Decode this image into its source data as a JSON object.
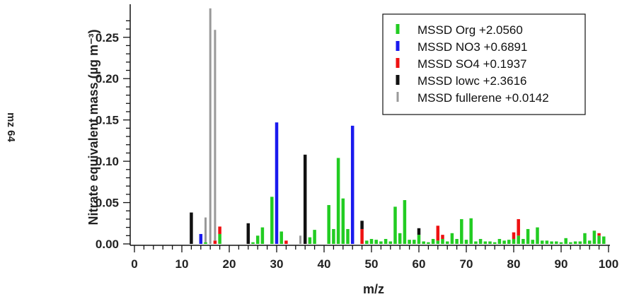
{
  "side_label": "mz 64",
  "chart_data": {
    "type": "bar",
    "title": "",
    "xlabel": "m/z",
    "ylabel": "Nitrate equivalent mass (µg m⁻³)",
    "xlim": [
      0,
      100
    ],
    "ylim": [
      0,
      0.29
    ],
    "xticks": [
      "0",
      "10",
      "20",
      "30",
      "40",
      "50",
      "60",
      "70",
      "80",
      "90",
      "100"
    ],
    "yticks": [
      "0.00",
      "0.05",
      "0.10",
      "0.15",
      "0.20",
      "0.25"
    ],
    "grid": false,
    "legend_position": "top-right",
    "stacked": true,
    "colors": {
      "MSSD Org": "#22cc22",
      "MSSD NO3": "#1a1aee",
      "MSSD SO4": "#ee1111",
      "MSSD lowc": "#111111",
      "MSSD fullerene": "#999999"
    },
    "legend": [
      {
        "series": "MSSD Org",
        "label": "MSSD Org +2.0560"
      },
      {
        "series": "MSSD NO3",
        "label": "MSSD NO3 +0.6891"
      },
      {
        "series": "MSSD SO4",
        "label": "MSSD SO4 +0.1937"
      },
      {
        "series": "MSSD lowc",
        "label": "MSSD lowc +2.3616"
      },
      {
        "series": "MSSD fullerene",
        "label": "MSSD fullerene +0.0142"
      }
    ],
    "series": [
      {
        "name": "MSSD Org",
        "points": [
          [
            15,
            0.002
          ],
          [
            18,
            0.012
          ],
          [
            25,
            0.002
          ],
          [
            26,
            0.01
          ],
          [
            27,
            0.02
          ],
          [
            29,
            0.057
          ],
          [
            31,
            0.015
          ],
          [
            37,
            0.008
          ],
          [
            38,
            0.017
          ],
          [
            41,
            0.047
          ],
          [
            42,
            0.018
          ],
          [
            43,
            0.104
          ],
          [
            44,
            0.055
          ],
          [
            45,
            0.018
          ],
          [
            49,
            0.004
          ],
          [
            50,
            0.006
          ],
          [
            51,
            0.005
          ],
          [
            52,
            0.003
          ],
          [
            53,
            0.006
          ],
          [
            54,
            0.003
          ],
          [
            55,
            0.045
          ],
          [
            56,
            0.013
          ],
          [
            57,
            0.053
          ],
          [
            58,
            0.005
          ],
          [
            59,
            0.005
          ],
          [
            60,
            0.011
          ],
          [
            61,
            0.003
          ],
          [
            62,
            0.002
          ],
          [
            63,
            0.006
          ],
          [
            64,
            0.004
          ],
          [
            65,
            0.006
          ],
          [
            66,
            0.003
          ],
          [
            67,
            0.013
          ],
          [
            68,
            0.006
          ],
          [
            69,
            0.03
          ],
          [
            70,
            0.005
          ],
          [
            71,
            0.031
          ],
          [
            72,
            0.003
          ],
          [
            73,
            0.006
          ],
          [
            74,
            0.003
          ],
          [
            75,
            0.003
          ],
          [
            76,
            0.002
          ],
          [
            77,
            0.006
          ],
          [
            78,
            0.004
          ],
          [
            79,
            0.005
          ],
          [
            80,
            0.006
          ],
          [
            81,
            0.01
          ],
          [
            82,
            0.006
          ],
          [
            83,
            0.018
          ],
          [
            84,
            0.005
          ],
          [
            85,
            0.02
          ],
          [
            86,
            0.004
          ],
          [
            87,
            0.004
          ],
          [
            88,
            0.003
          ],
          [
            89,
            0.003
          ],
          [
            90,
            0.002
          ],
          [
            91,
            0.007
          ],
          [
            92,
            0.002
          ],
          [
            93,
            0.003
          ],
          [
            94,
            0.003
          ],
          [
            95,
            0.013
          ],
          [
            96,
            0.004
          ],
          [
            97,
            0.016
          ],
          [
            98,
            0.01
          ],
          [
            99,
            0.009
          ]
        ]
      },
      {
        "name": "MSSD NO3",
        "points": [
          [
            14,
            0.012
          ],
          [
            30,
            0.147
          ],
          [
            46,
            0.143
          ]
        ]
      },
      {
        "name": "MSSD SO4",
        "points": [
          [
            17,
            0.004
          ],
          [
            18,
            0.009
          ],
          [
            32,
            0.004
          ],
          [
            48,
            0.018
          ],
          [
            64,
            0.018
          ],
          [
            65,
            0.005
          ],
          [
            80,
            0.008
          ],
          [
            81,
            0.02
          ],
          [
            98,
            0.003
          ]
        ]
      },
      {
        "name": "MSSD lowc",
        "points": [
          [
            12,
            0.038
          ],
          [
            24,
            0.025
          ],
          [
            36,
            0.108
          ],
          [
            48,
            0.01
          ],
          [
            60,
            0.008
          ]
        ]
      },
      {
        "name": "MSSD fullerene",
        "points": [
          [
            16,
            0.285
          ],
          [
            17,
            0.255
          ],
          [
            15,
            0.03
          ],
          [
            35,
            0.01
          ]
        ]
      }
    ]
  }
}
